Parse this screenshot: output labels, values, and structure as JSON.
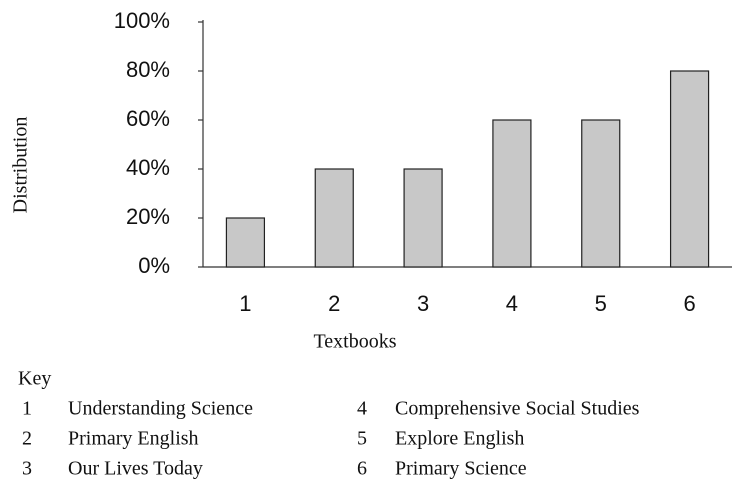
{
  "chart_data": {
    "type": "bar",
    "categories": [
      "1",
      "2",
      "3",
      "4",
      "5",
      "6"
    ],
    "values": [
      20,
      40,
      40,
      60,
      60,
      80
    ],
    "color": "#c8c8c8",
    "ylim": [
      0,
      100
    ],
    "yticks": [
      {
        "value": 0,
        "label": "0%"
      },
      {
        "value": 20,
        "label": "20%"
      },
      {
        "value": 40,
        "label": "40%"
      },
      {
        "value": 60,
        "label": "60%"
      },
      {
        "value": 80,
        "label": "80%"
      },
      {
        "value": 100,
        "label": "100%"
      }
    ],
    "y_label": "Distribution",
    "x_label": "Textbooks",
    "grid": false,
    "key": {
      "title": "Key",
      "items": [
        {
          "number": "1",
          "name": "Understanding Science"
        },
        {
          "number": "2",
          "name": "Primary English"
        },
        {
          "number": "3",
          "name": "Our Lives Today"
        },
        {
          "number": "4",
          "name": "Comprehensive Social Studies"
        },
        {
          "number": "5",
          "name": "Explore English"
        },
        {
          "number": "6",
          "name": "Primary Science"
        }
      ]
    }
  }
}
